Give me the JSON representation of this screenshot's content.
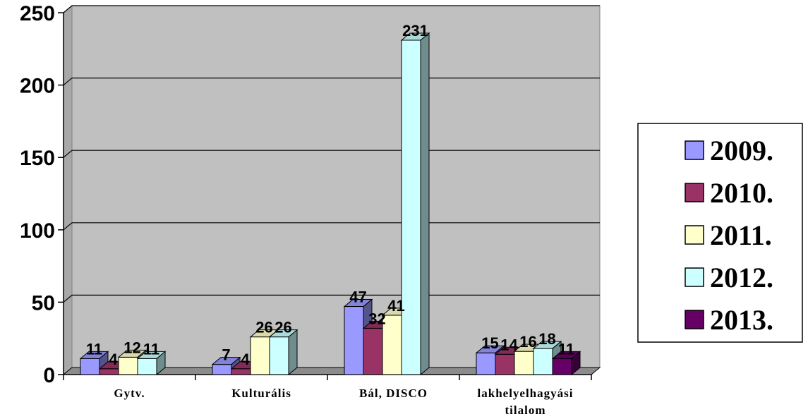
{
  "chart_data": {
    "type": "bar",
    "categories": [
      [
        "Gytv."
      ],
      [
        "Kulturális"
      ],
      [
        "Bál, DISCO"
      ],
      [
        "lakhelyelhagyási",
        "tilalom"
      ]
    ],
    "series": [
      {
        "name": "2009.",
        "color": "#9999ff",
        "values": [
          11,
          7,
          47,
          15
        ]
      },
      {
        "name": "2010.",
        "color": "#993366",
        "values": [
          4,
          4,
          32,
          14
        ]
      },
      {
        "name": "2011.",
        "color": "#ffffcc",
        "values": [
          12,
          26,
          41,
          16
        ]
      },
      {
        "name": "2012.",
        "color": "#ccffff",
        "values": [
          11,
          26,
          231,
          18
        ]
      },
      {
        "name": "2013.",
        "color": "#660066",
        "values": [
          null,
          null,
          null,
          11
        ]
      }
    ],
    "yticks": [
      0,
      50,
      100,
      150,
      200,
      250
    ],
    "ylim": [
      0,
      250
    ],
    "grid": true,
    "legend": "right",
    "plot_bg": "#c0c0c0"
  }
}
